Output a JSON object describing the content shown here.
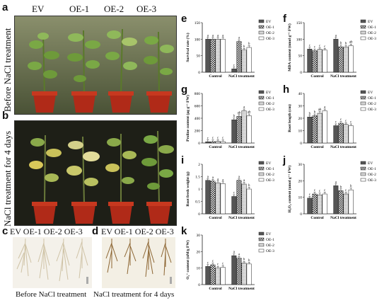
{
  "figure": {
    "top_labels": [
      "EV",
      "OE-1",
      "OE-2",
      "OE-3"
    ],
    "panels": {
      "a": {
        "letter": "a",
        "side_label": "Before NaCl treatment"
      },
      "b": {
        "letter": "b",
        "side_label": "NaCl treatment for 4 days"
      },
      "c": {
        "letter": "c",
        "header": "EV OE-1 OE-2 OE-3",
        "caption": "Before NaCl treatment"
      },
      "d": {
        "letter": "d",
        "header": "EV OE-1 OE-2 OE-3",
        "caption": "NaCl treatment for 4 days"
      }
    },
    "colors": {
      "plant_bg_a": "#6f7a52",
      "plant_bg_b": "#1e1f17",
      "pot": "#b02a18",
      "leaf": "#6e9a3a",
      "yellow_leaf": "#d9c85a",
      "root_bg_c": "#f4f1ea",
      "root_bg_d": "#f3efe4",
      "root_c": "#d9cfb8",
      "root_d": "#a37a43"
    }
  },
  "chart_data": [
    {
      "panel": "e",
      "type": "bar",
      "ylabel": "Survival rate (%)",
      "categories": [
        "Control",
        "NaCl treatment"
      ],
      "ylim": [
        0,
        150
      ],
      "yticks": [
        0,
        50,
        100,
        150
      ],
      "series": [
        {
          "name": "EV",
          "values": [
            100,
            10
          ],
          "labels": [
            "a",
            "c"
          ]
        },
        {
          "name": "OE-1",
          "values": [
            100,
            93
          ],
          "labels": [
            "a",
            "a"
          ]
        },
        {
          "name": "OE-2",
          "values": [
            100,
            67
          ],
          "labels": [
            "a",
            "b"
          ]
        },
        {
          "name": "OE-3",
          "values": [
            100,
            75
          ],
          "labels": [
            "a",
            "b"
          ]
        }
      ]
    },
    {
      "panel": "f",
      "type": "bar",
      "ylabel": "MDA content (nmol g⁻¹ FW)",
      "categories": [
        "Control",
        "NaCl treatment"
      ],
      "ylim": [
        0,
        150
      ],
      "yticks": [
        0,
        50,
        100,
        150
      ],
      "series": [
        {
          "name": "EV",
          "values": [
            70,
            100
          ],
          "labels": [
            "c",
            "a"
          ]
        },
        {
          "name": "OE-1",
          "values": [
            65,
            77
          ],
          "labels": [
            "c",
            "b"
          ]
        },
        {
          "name": "OE-2",
          "values": [
            69,
            76
          ],
          "labels": [
            "c",
            "b"
          ]
        },
        {
          "name": "OE-3",
          "values": [
            67,
            80
          ],
          "labels": [
            "c",
            "ab"
          ]
        }
      ]
    },
    {
      "panel": "g",
      "type": "bar",
      "ylabel": "Proline content (μg g⁻¹ FW)",
      "categories": [
        "Control",
        "NaCl treatment"
      ],
      "ylim": [
        0,
        800
      ],
      "yticks": [
        0,
        200,
        400,
        600,
        800
      ],
      "series": [
        {
          "name": "EV",
          "values": [
            20,
            375
          ],
          "labels": [
            "c",
            "b"
          ]
        },
        {
          "name": "OE-1",
          "values": [
            22,
            430
          ],
          "labels": [
            "c",
            "ab"
          ]
        },
        {
          "name": "OE-2",
          "values": [
            25,
            520
          ],
          "labels": [
            "c",
            "a"
          ]
        },
        {
          "name": "OE-3",
          "values": [
            23,
            440
          ],
          "labels": [
            "c",
            "ab"
          ]
        }
      ]
    },
    {
      "panel": "h",
      "type": "bar",
      "ylabel": "Root length (cm)",
      "categories": [
        "Control",
        "NaCl treatment"
      ],
      "ylim": [
        0,
        40
      ],
      "yticks": [
        0,
        10,
        20,
        30,
        40
      ],
      "series": [
        {
          "name": "EV",
          "values": [
            21,
            14
          ],
          "labels": [
            "b",
            "c"
          ]
        },
        {
          "name": "OE-1",
          "values": [
            22,
            16
          ],
          "labels": [
            "b",
            "c"
          ]
        },
        {
          "name": "OE-2",
          "values": [
            24,
            15
          ],
          "labels": [
            "ab",
            "c"
          ]
        },
        {
          "name": "OE-3",
          "values": [
            26,
            14
          ],
          "labels": [
            "a",
            "c"
          ]
        }
      ]
    },
    {
      "panel": "i",
      "type": "bar",
      "ylabel": "Root fresh weight (g)",
      "categories": [
        "Control",
        "NaCl treatment"
      ],
      "ylim": [
        0,
        2.0
      ],
      "yticks": [
        0,
        0.5,
        1.0,
        1.5,
        2.0
      ],
      "series": [
        {
          "name": "EV",
          "values": [
            1.35,
            0.7
          ],
          "labels": [
            "a",
            "c"
          ]
        },
        {
          "name": "OE-1",
          "values": [
            1.32,
            1.35
          ],
          "labels": [
            "a",
            "a"
          ]
        },
        {
          "name": "OE-2",
          "values": [
            1.25,
            1.2
          ],
          "labels": [
            "a",
            "a"
          ]
        },
        {
          "name": "OE-3",
          "values": [
            1.22,
            1.0
          ],
          "labels": [
            "a",
            "b"
          ]
        }
      ]
    },
    {
      "panel": "j",
      "type": "bar",
      "ylabel": "H₂O₂ content (umol g⁻¹ FW)",
      "categories": [
        "Control",
        "NaCl treatment"
      ],
      "ylim": [
        0,
        30
      ],
      "yticks": [
        0,
        10,
        20,
        30
      ],
      "series": [
        {
          "name": "EV",
          "values": [
            9.5,
            17
          ],
          "labels": [
            "c",
            "a"
          ]
        },
        {
          "name": "OE-1",
          "values": [
            12,
            14
          ],
          "labels": [
            "c",
            "b"
          ]
        },
        {
          "name": "OE-2",
          "values": [
            11.5,
            12
          ],
          "labels": [
            "c",
            "c"
          ]
        },
        {
          "name": "OE-3",
          "values": [
            12,
            14.5
          ],
          "labels": [
            "c",
            "b"
          ]
        }
      ]
    },
    {
      "panel": "k",
      "type": "bar",
      "ylabel": "O₂⁻ content (nM/g FW)",
      "categories": [
        "Control",
        "NaCl treatment"
      ],
      "ylim": [
        0,
        30
      ],
      "yticks": [
        0,
        10,
        20,
        30
      ],
      "series": [
        {
          "name": "EV",
          "values": [
            11,
            17.5
          ],
          "labels": [
            "c",
            "a"
          ]
        },
        {
          "name": "OE-1",
          "values": [
            12,
            16
          ],
          "labels": [
            "c",
            "a"
          ]
        },
        {
          "name": "OE-2",
          "values": [
            10,
            13
          ],
          "labels": [
            "c",
            "b"
          ]
        },
        {
          "name": "OE-3",
          "values": [
            10.5,
            12.5
          ],
          "labels": [
            "c",
            "b"
          ]
        }
      ]
    }
  ]
}
